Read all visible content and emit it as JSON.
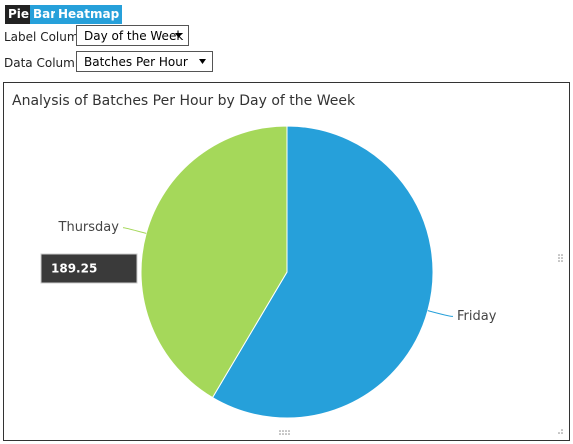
{
  "toolbar": {
    "buttons": [
      "Pie",
      "Bar",
      "Heatmap"
    ]
  },
  "controls": [
    {
      "label": "Label Column",
      "value": "Day of the Week"
    },
    {
      "label": "Data Column",
      "value": "Batches Per Hour"
    }
  ],
  "chart_data": {
    "type": "pie",
    "title": "Analysis of Batches Per Hour by Day of the Week",
    "categories": [
      "Friday",
      "Thursday"
    ],
    "values": [
      267,
      189.25
    ],
    "colors": [
      "#26a0da",
      "#a5d85a"
    ],
    "tooltip_index": 1
  }
}
